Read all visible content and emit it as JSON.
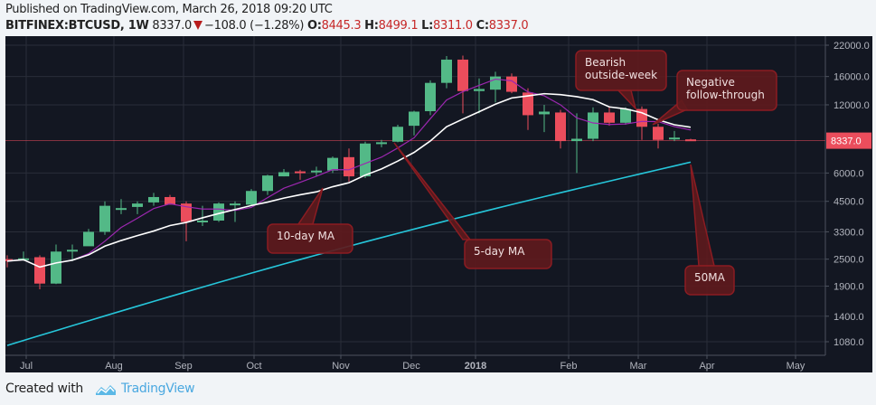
{
  "header": {
    "published": "Published on TradingView.com, March 26, 2018 09:20 UTC",
    "symbol": "BITFINEX:BTCUSD, 1W",
    "last": "8337.0",
    "change": "−108.0 (−1.28%)",
    "o_label": "O:",
    "o": "8445.3",
    "h_label": "H:",
    "h": "8499.1",
    "l_label": "L:",
    "l": "8311.0",
    "c_label": "C:",
    "c": "8337.0"
  },
  "footer": {
    "created_with": "Created with",
    "brand": "TradingView"
  },
  "colors": {
    "bg": "#131722",
    "up": "#53b987",
    "down": "#eb4d5c",
    "ma5": "#9c27b0",
    "ma10": "#ffffff",
    "ma50": "#26c6da",
    "callout": "#5e1a1d",
    "callout_border": "#8b1c22"
  },
  "chart_data": {
    "type": "candlestick",
    "title": "BITFINEX:BTCUSD, 1W",
    "xlabel": "",
    "ylabel": "",
    "scale": "log",
    "y_ticks": [
      "22000.0",
      "16000.0",
      "12000.0",
      "6000.0",
      "4500.0",
      "3300.0",
      "2500.0",
      "1900.0",
      "1400.0",
      "1080.0"
    ],
    "x_ticks": [
      "Jul",
      "Aug",
      "Sep",
      "Oct",
      "Nov",
      "Dec",
      "2018",
      "Feb",
      "Mar",
      "Apr",
      "May"
    ],
    "last_price_label": "8337.0",
    "candles_ohlc": [
      [
        2500,
        2600,
        2300,
        2450
      ],
      [
        2480,
        2700,
        2460,
        2520
      ],
      [
        2550,
        2600,
        1840,
        1950
      ],
      [
        1950,
        2900,
        1940,
        2700
      ],
      [
        2750,
        2900,
        2450,
        2750
      ],
      [
        2850,
        3400,
        2900,
        3300
      ],
      [
        3300,
        4500,
        3200,
        4300
      ],
      [
        4200,
        4600,
        3950,
        4200
      ],
      [
        4250,
        4500,
        3950,
        4400
      ],
      [
        4450,
        4900,
        4300,
        4700
      ],
      [
        4700,
        4800,
        4350,
        4350
      ],
      [
        4400,
        4500,
        3000,
        3650
      ],
      [
        3700,
        4300,
        3500,
        3700
      ],
      [
        3700,
        4450,
        3650,
        4400
      ],
      [
        4400,
        4500,
        3650,
        4400
      ],
      [
        4350,
        5100,
        4300,
        5000
      ],
      [
        5000,
        5900,
        4800,
        5850
      ],
      [
        5800,
        6250,
        5800,
        6050
      ],
      [
        6100,
        6200,
        5600,
        6000
      ],
      [
        6100,
        6400,
        5800,
        6150
      ],
      [
        6150,
        7100,
        6000,
        7000
      ],
      [
        7050,
        7700,
        5500,
        5800
      ],
      [
        5800,
        8250,
        5700,
        8100
      ],
      [
        8200,
        8400,
        7800,
        8200
      ],
      [
        8250,
        9800,
        8200,
        9600
      ],
      [
        9700,
        11300,
        8800,
        11200
      ],
      [
        11250,
        15400,
        10800,
        15000
      ],
      [
        15000,
        19700,
        14200,
        19000
      ],
      [
        19000,
        19800,
        11000,
        13800
      ],
      [
        13800,
        15700,
        11000,
        14100
      ],
      [
        14000,
        16800,
        12300,
        16000
      ],
      [
        16000,
        16500,
        13500,
        13700
      ],
      [
        13600,
        14200,
        9300,
        10800
      ],
      [
        10900,
        12000,
        9100,
        11200
      ],
      [
        11100,
        11400,
        7700,
        8300
      ],
      [
        8300,
        11000,
        6000,
        8500
      ],
      [
        8500,
        11700,
        8300,
        11100
      ],
      [
        11100,
        11800,
        9700,
        10000
      ],
      [
        10000,
        11700,
        9800,
        11500
      ],
      [
        11500,
        11800,
        8400,
        9600
      ],
      [
        9600,
        9900,
        7700,
        8400
      ],
      [
        8500,
        9200,
        8300,
        8600
      ],
      [
        8445,
        8500,
        8311,
        8337
      ]
    ],
    "series": [
      {
        "name": "5-day MA",
        "color": "#9c27b0"
      },
      {
        "name": "10-day MA",
        "color": "#ffffff"
      },
      {
        "name": "50MA",
        "color": "#26c6da"
      }
    ],
    "annotations": [
      "10-day MA",
      "5-day MA",
      "Bearish outside-week",
      "Negative follow-through",
      "50MA"
    ]
  }
}
